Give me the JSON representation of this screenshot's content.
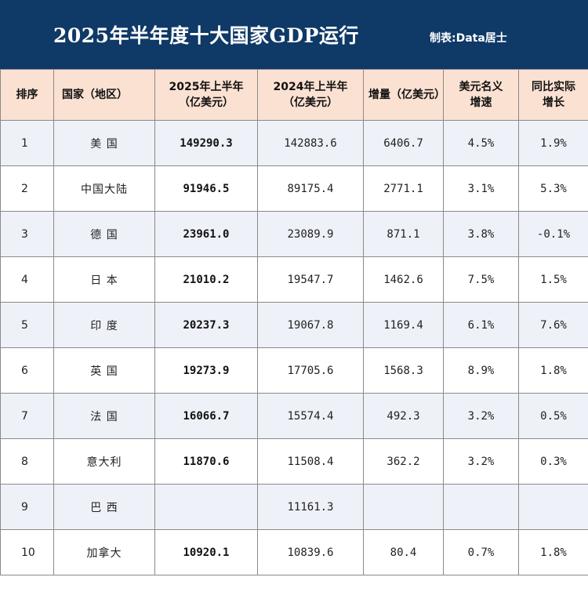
{
  "header": {
    "title": "2025年半年度十大国家GDP运行",
    "credit": "制表:Data居士",
    "background_color": "#0f3966"
  },
  "table": {
    "header_background": "#fbe1d2",
    "columns": [
      "排序",
      "国家（地区）",
      "2025年上半年（亿美元）",
      "2024年上半年（亿美元）",
      "增量（亿美元）",
      "美元名义增速",
      "同比实际增长"
    ],
    "rows": [
      {
        "rank": "1",
        "country": "美 国",
        "v2025": "149290.3",
        "v2024": "142883.6",
        "increment": "6406.7",
        "nominal_growth": "4.5%",
        "real_growth": "1.9%"
      },
      {
        "rank": "2",
        "country": "中国大陆",
        "v2025": "91946.5",
        "v2024": "89175.4",
        "increment": "2771.1",
        "nominal_growth": "3.1%",
        "real_growth": "5.3%"
      },
      {
        "rank": "3",
        "country": "德 国",
        "v2025": "23961.0",
        "v2024": "23089.9",
        "increment": "871.1",
        "nominal_growth": "3.8%",
        "real_growth": "-0.1%"
      },
      {
        "rank": "4",
        "country": "日 本",
        "v2025": "21010.2",
        "v2024": "19547.7",
        "increment": "1462.6",
        "nominal_growth": "7.5%",
        "real_growth": "1.5%"
      },
      {
        "rank": "5",
        "country": "印 度",
        "v2025": "20237.3",
        "v2024": "19067.8",
        "increment": "1169.4",
        "nominal_growth": "6.1%",
        "real_growth": "7.6%"
      },
      {
        "rank": "6",
        "country": "英 国",
        "v2025": "19273.9",
        "v2024": "17705.6",
        "increment": "1568.3",
        "nominal_growth": "8.9%",
        "real_growth": "1.8%"
      },
      {
        "rank": "7",
        "country": "法 国",
        "v2025": "16066.7",
        "v2024": "15574.4",
        "increment": "492.3",
        "nominal_growth": "3.2%",
        "real_growth": "0.5%"
      },
      {
        "rank": "8",
        "country": "意大利",
        "v2025": "11870.6",
        "v2024": "11508.4",
        "increment": "362.2",
        "nominal_growth": "3.2%",
        "real_growth": "0.3%"
      },
      {
        "rank": "9",
        "country": "巴 西",
        "v2025": "",
        "v2024": "11161.3",
        "increment": "",
        "nominal_growth": "",
        "real_growth": ""
      },
      {
        "rank": "10",
        "country": "加拿大",
        "v2025": "10920.1",
        "v2024": "10839.6",
        "increment": "80.4",
        "nominal_growth": "0.7%",
        "real_growth": "1.8%"
      }
    ]
  }
}
